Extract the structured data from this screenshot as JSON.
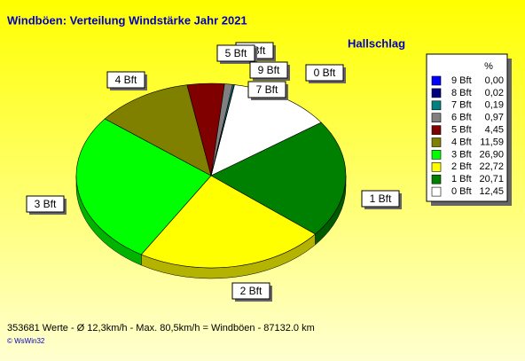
{
  "chart_data": {
    "type": "pie",
    "title": "Windböen: Verteilung Windstärke  Jahr 2021",
    "subtitle": "Hallschlag",
    "legend_header": "%",
    "categories": [
      "0 Bft",
      "1 Bft",
      "2 Bft",
      "3 Bft",
      "4 Bft",
      "5 Bft",
      "6 Bft",
      "7 Bft",
      "8 Bft",
      "9 Bft"
    ],
    "values": [
      12.45,
      20.71,
      22.72,
      26.9,
      11.59,
      4.45,
      0.97,
      0.19,
      0.02,
      0.0
    ],
    "value_labels": [
      "12,45",
      "20,71",
      "22,72",
      "26,90",
      "11,59",
      "4,45",
      "0,97",
      "0,19",
      "0,02",
      "0,00"
    ],
    "colors": [
      "#ffffff",
      "#008000",
      "#ffff00",
      "#00ff00",
      "#808000",
      "#800000",
      "#808080",
      "#008080",
      "#000080",
      "#0000ff"
    ],
    "legend": "right",
    "footer": "353681 Werte   -   Ø 12,3km/h  -  Max. 80,5km/h = Windböen   -   87132.0 km",
    "copyright": "© WsWin32"
  }
}
